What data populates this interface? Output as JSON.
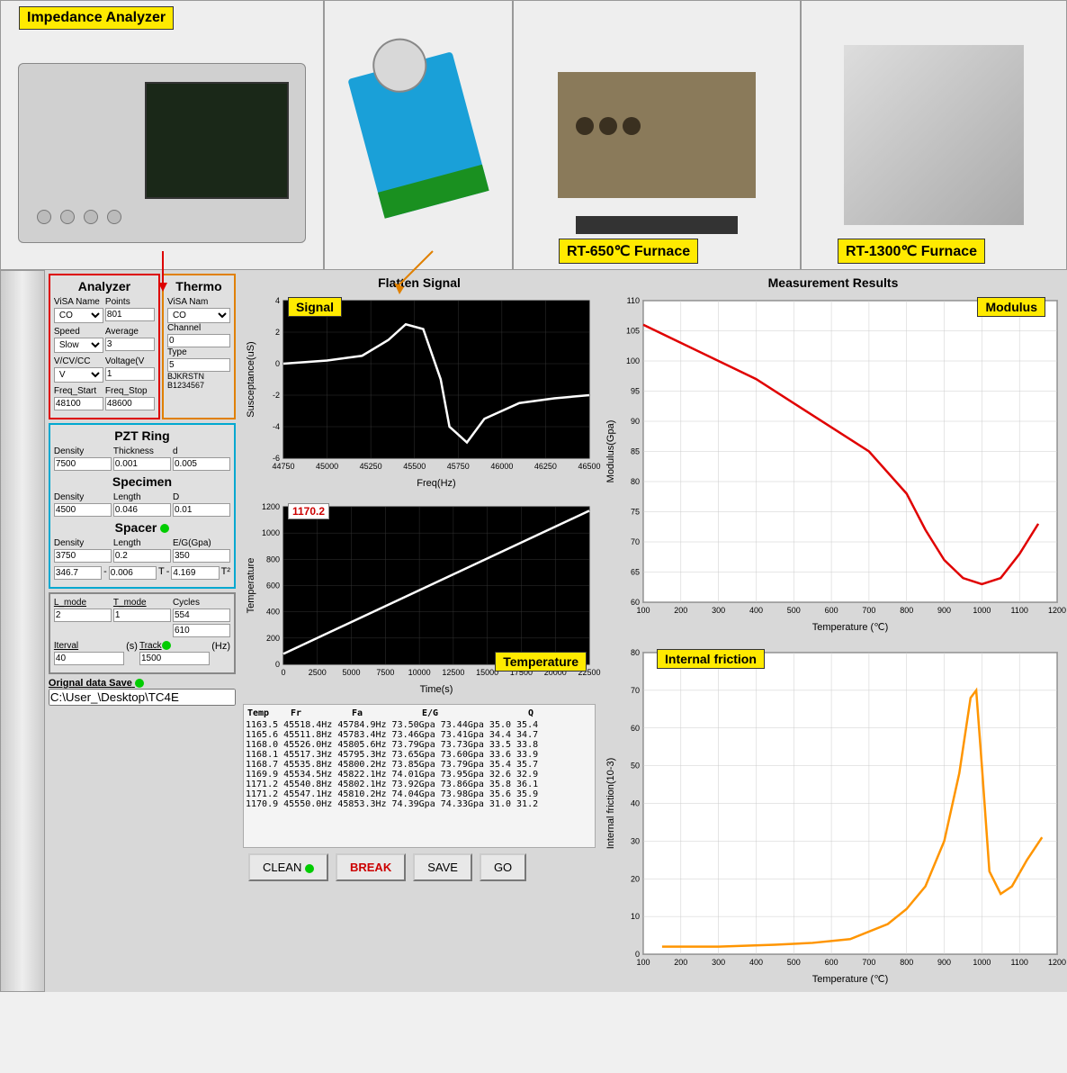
{
  "top": {
    "analyzer_label": "Impedance Analyzer",
    "furnace1_label": "RT-650℃ Furnace",
    "furnace2_label": "RT-1300℃ Furnace"
  },
  "analyzer": {
    "title": "Analyzer",
    "visa_name_label": "ViSA Name",
    "visa_name": "CO",
    "points_label": "Points",
    "points": "801",
    "speed_label": "Speed",
    "speed": "Slow",
    "average_label": "Average",
    "average": "3",
    "vcvcc_label": "V/CV/CC",
    "vcvcc": "V",
    "voltage_label": "Voltage(V",
    "voltage": "1",
    "freq_start_label": "Freq_Start",
    "freq_start": "48100",
    "freq_stop_label": "Freq_Stop",
    "freq_stop": "48600"
  },
  "thermo": {
    "title": "Thermo",
    "visa_name_label": "ViSA Nam",
    "visa_name": "CO",
    "channel_label": "Channel",
    "channel": "0",
    "type_label": "Type",
    "type": "5",
    "ids": "BJKRSTN\nB1234567"
  },
  "pzt": {
    "title": "PZT Ring",
    "density_label": "Density",
    "density": "7500",
    "thickness_label": "Thickness",
    "thickness": "0.001",
    "d_label": "d",
    "d": "0.005"
  },
  "specimen": {
    "title": "Specimen",
    "density_label": "Density",
    "density": "4500",
    "length_label": "Length",
    "length": "0.046",
    "D_label": "D",
    "D": "0.01"
  },
  "spacer": {
    "title": "Spacer",
    "density_label": "Density",
    "density": "3750",
    "length_label": "Length",
    "length": "0.2",
    "eg_label": "E/G(Gpa)",
    "eg": "350",
    "coef1": "346.7",
    "coef2": "0.006",
    "coef2_unit": "T",
    "coef3": "4.169",
    "coef3_unit": "T²"
  },
  "mode": {
    "lmode_label": "L_mode",
    "lmode": "2",
    "tmode_label": "T_mode",
    "tmode": "1",
    "cycles_label": "Cycles",
    "cycles1": "554",
    "cycles2": "610",
    "iterval_label": "Iterval",
    "iterval": "40",
    "iterval_unit": "(s)",
    "track_label": "Track",
    "track": "1500",
    "track_unit": "(Hz)"
  },
  "save": {
    "label": "Orignal data Save",
    "path": "C:\\User_\\Desktop\\TC4E"
  },
  "signal_chart": {
    "title": "Flatten Signal",
    "badge": "Signal",
    "ylabel": "Susceptance(uS)",
    "xlabel": "Freq(Hz)",
    "xmin": 44750,
    "xmax": 46500,
    "xtick": 250,
    "ymin": -6,
    "ymax": 4,
    "ytick": 2,
    "line_color": "#ffffff",
    "bg": "#000000",
    "grid": "#333333",
    "points": [
      [
        44750,
        0
      ],
      [
        45000,
        0.2
      ],
      [
        45200,
        0.5
      ],
      [
        45350,
        1.5
      ],
      [
        45450,
        2.5
      ],
      [
        45550,
        2.2
      ],
      [
        45650,
        -1
      ],
      [
        45700,
        -4
      ],
      [
        45800,
        -5
      ],
      [
        45900,
        -3.5
      ],
      [
        46100,
        -2.5
      ],
      [
        46300,
        -2.2
      ],
      [
        46500,
        -2
      ]
    ]
  },
  "temp_chart": {
    "badge": "Temperature",
    "value_badge": "1170.2",
    "ylabel": "Temperature",
    "xlabel": "Time(s)",
    "xmin": 0,
    "xmax": 22500,
    "xtick": 2500,
    "ymin": 0,
    "ymax": 1200,
    "ytick": 200,
    "line_color": "#ffffff",
    "bg": "#000000",
    "grid": "#333333",
    "points": [
      [
        0,
        80
      ],
      [
        22500,
        1170
      ]
    ]
  },
  "modulus_chart": {
    "title": "Measurement Results",
    "badge": "Modulus",
    "ylabel": "Modulus(Gpa)",
    "xlabel": "Temperature (℃)",
    "xmin": 100,
    "xmax": 1200,
    "xtick": 100,
    "ymin": 60,
    "ymax": 110,
    "ytick": 5,
    "line_color": "#e00000",
    "bg": "#ffffff",
    "grid": "#cccccc",
    "points": [
      [
        100,
        106
      ],
      [
        200,
        103
      ],
      [
        300,
        100
      ],
      [
        400,
        97
      ],
      [
        500,
        93
      ],
      [
        600,
        89
      ],
      [
        700,
        85
      ],
      [
        800,
        78
      ],
      [
        850,
        72
      ],
      [
        900,
        67
      ],
      [
        950,
        64
      ],
      [
        1000,
        63
      ],
      [
        1050,
        64
      ],
      [
        1100,
        68
      ],
      [
        1150,
        73
      ]
    ]
  },
  "friction_chart": {
    "badge": "Internal friction",
    "ylabel": "Internal friction(10-3)",
    "xlabel": "Temperature (℃)",
    "xmin": 100,
    "xmax": 1200,
    "xtick": 100,
    "ymin": 0,
    "ymax": 80,
    "ytick": 10,
    "line_color": "#ff9500",
    "bg": "#ffffff",
    "grid": "#cccccc",
    "points": [
      [
        150,
        2
      ],
      [
        300,
        2
      ],
      [
        450,
        2.5
      ],
      [
        550,
        3
      ],
      [
        650,
        4
      ],
      [
        750,
        8
      ],
      [
        800,
        12
      ],
      [
        850,
        18
      ],
      [
        900,
        30
      ],
      [
        940,
        48
      ],
      [
        970,
        68
      ],
      [
        985,
        70
      ],
      [
        1000,
        50
      ],
      [
        1020,
        22
      ],
      [
        1050,
        16
      ],
      [
        1080,
        18
      ],
      [
        1120,
        25
      ],
      [
        1160,
        31
      ]
    ]
  },
  "data_table": {
    "headers": [
      "Temp",
      "Fr",
      "Fa",
      "E/G",
      "Q"
    ],
    "rows": [
      "1163.5  45518.4Hz  45784.9Hz  73.50Gpa  73.44Gpa  35.0  35.4",
      "1165.6  45511.8Hz  45783.4Hz  73.46Gpa  73.41Gpa  34.4  34.7",
      "1168.0  45526.0Hz  45805.6Hz  73.79Gpa  73.73Gpa  33.5  33.8",
      "1168.1  45517.3Hz  45795.3Hz  73.65Gpa  73.60Gpa  33.6  33.9",
      "1168.7  45535.8Hz  45800.2Hz  73.85Gpa  73.79Gpa  35.4  35.7",
      "1169.9  45534.5Hz  45822.1Hz  74.01Gpa  73.95Gpa  32.6  32.9",
      "1171.2  45540.8Hz  45802.1Hz  73.92Gpa  73.86Gpa  35.8  36.1",
      "1171.2  45547.1Hz  45810.2Hz  74.04Gpa  73.98Gpa  35.6  35.9",
      "1170.9  45550.0Hz  45853.3Hz  74.39Gpa  74.33Gpa  31.0  31.2"
    ]
  },
  "buttons": {
    "clean": "CLEAN",
    "break": "BREAK",
    "save": "SAVE",
    "go": "GO"
  }
}
